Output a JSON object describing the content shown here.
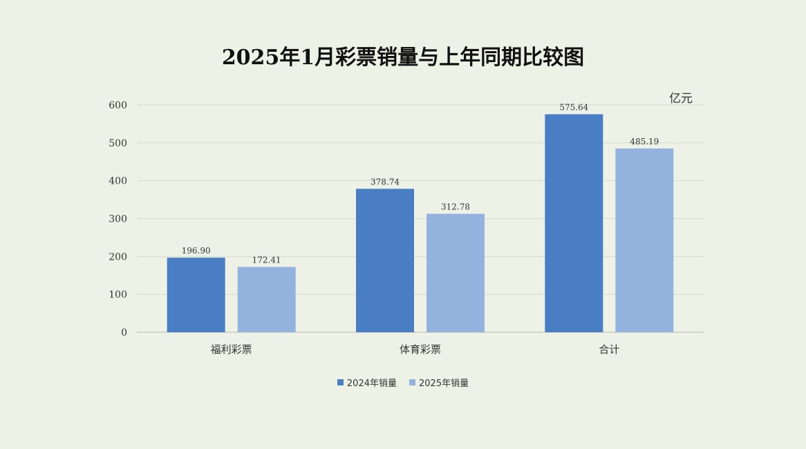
{
  "chart_data": {
    "type": "bar",
    "title": "2025年1月彩票销量与上年同期比较图",
    "unit": "亿元",
    "categories": [
      "福利彩票",
      "体育彩票",
      "合计"
    ],
    "series": [
      {
        "name": "2024年销量",
        "values": [
          196.9,
          378.74,
          575.64
        ],
        "labels": [
          "196.90",
          "378.74",
          "575.64"
        ],
        "color": "#4a7ec4"
      },
      {
        "name": "2025年销量",
        "values": [
          172.41,
          312.78,
          485.19
        ],
        "labels": [
          "172.41",
          "312.78",
          "485.19"
        ],
        "color": "#93b3de"
      }
    ],
    "ylim": [
      0,
      600
    ],
    "yticks": [
      "0",
      "100",
      "200",
      "300",
      "400",
      "500",
      "600"
    ],
    "grid": true,
    "legend": "bottom"
  }
}
